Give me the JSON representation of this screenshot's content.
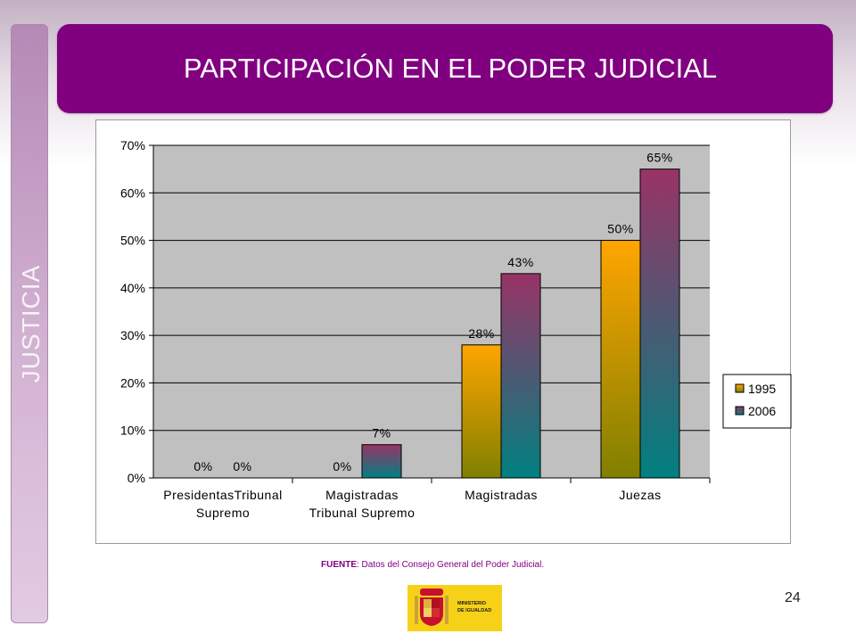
{
  "slide": {
    "section": "JUSTICIA",
    "title": "PARTICIPACIÓN EN EL PODER JUDICIAL",
    "source_label": "FUENTE",
    "source_text": ": Datos del Consejo General del Poder Judicial.",
    "page_number": "24",
    "logo_text_1": "MINISTERIO",
    "logo_text_2": "DE IGUALDAD"
  },
  "chart_data": {
    "type": "bar",
    "categories": [
      [
        "PresidentasTribunal",
        "Supremo"
      ],
      [
        "Magistradas",
        "Tribunal Supremo"
      ],
      [
        "Magistradas"
      ],
      [
        "Juezas"
      ]
    ],
    "series": [
      {
        "name": "1995",
        "values": [
          0,
          0,
          28,
          50
        ],
        "labels": [
          "0%",
          "0%",
          "28%",
          "50%"
        ],
        "color_top": "#ffa500",
        "color_bottom": "#808000"
      },
      {
        "name": "2006",
        "values": [
          0,
          7,
          43,
          65
        ],
        "labels": [
          "0%",
          "7%",
          "43%",
          "65%"
        ],
        "color_top": "#993366",
        "color_bottom": "#008080"
      }
    ],
    "ylim": [
      0,
      70
    ],
    "yticks": [
      0,
      10,
      20,
      30,
      40,
      50,
      60,
      70
    ],
    "ytick_labels": [
      "0%",
      "10%",
      "20%",
      "30%",
      "40%",
      "50%",
      "60%",
      "70%"
    ],
    "grid": true,
    "legend": "right",
    "plot_background": "#c0c0c0"
  }
}
